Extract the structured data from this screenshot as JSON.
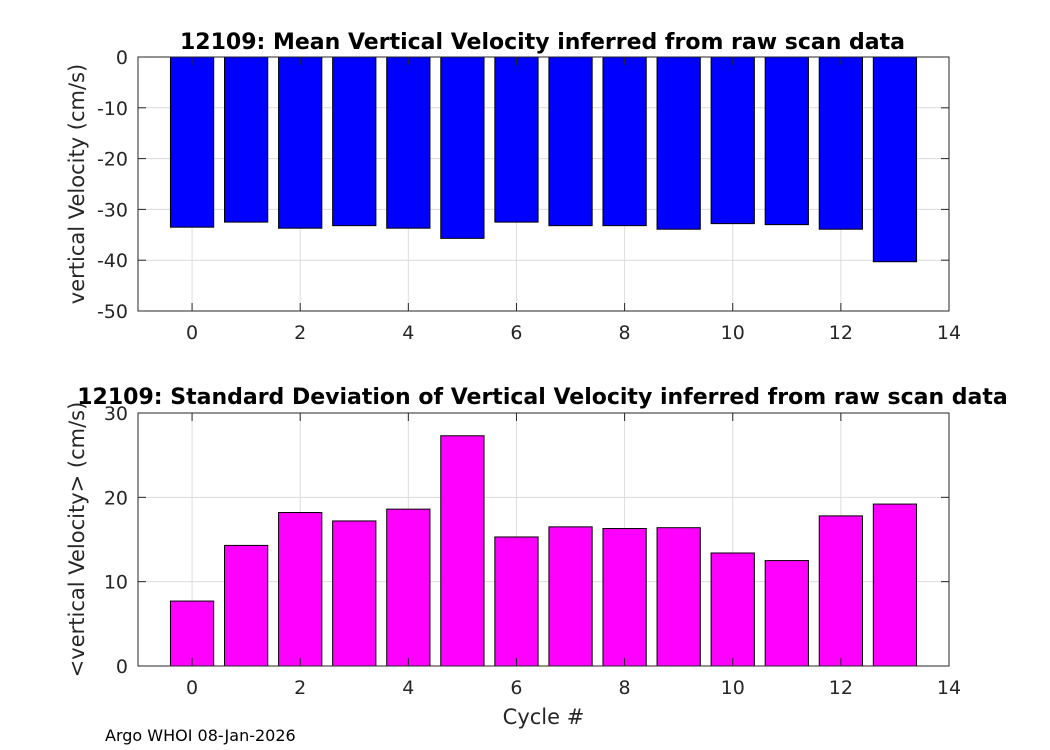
{
  "chart_data": [
    {
      "type": "bar",
      "title": "12109: Mean Vertical Velocity inferred from raw scan data",
      "xlabel": "",
      "ylabel": "vertical Velocity (cm/s)",
      "xlim": [
        -1,
        14
      ],
      "ylim": [
        -50,
        0
      ],
      "xticks": [
        0,
        2,
        4,
        6,
        8,
        10,
        12,
        14
      ],
      "yticks": [
        0,
        -10,
        -20,
        -30,
        -40,
        -50
      ],
      "grid": true,
      "bar_color": "#0000ff",
      "x": [
        0,
        1,
        2,
        3,
        4,
        5,
        6,
        7,
        8,
        9,
        10,
        11,
        12,
        13
      ],
      "values": [
        -33.5,
        -32.5,
        -33.7,
        -33.2,
        -33.7,
        -35.7,
        -32.5,
        -33.2,
        -33.2,
        -33.9,
        -32.8,
        -33.0,
        -33.9,
        -40.3
      ]
    },
    {
      "type": "bar",
      "title": "12109: Standard Deviation of Vertical Velocity inferred from raw scan data",
      "xlabel": "Cycle #",
      "ylabel": "<vertical Velocity> (cm/s)",
      "xlim": [
        -1,
        14
      ],
      "ylim": [
        0,
        30
      ],
      "xticks": [
        0,
        2,
        4,
        6,
        8,
        10,
        12,
        14
      ],
      "yticks": [
        0,
        10,
        20,
        30
      ],
      "grid": true,
      "bar_color": "#ff00ff",
      "x": [
        0,
        1,
        2,
        3,
        4,
        5,
        6,
        7,
        8,
        9,
        10,
        11,
        12,
        13
      ],
      "values": [
        7.7,
        14.3,
        18.2,
        17.2,
        18.6,
        27.3,
        15.3,
        16.5,
        16.3,
        16.4,
        13.4,
        12.5,
        17.8,
        19.2
      ]
    }
  ],
  "footer": "Argo WHOI 08-Jan-2026"
}
